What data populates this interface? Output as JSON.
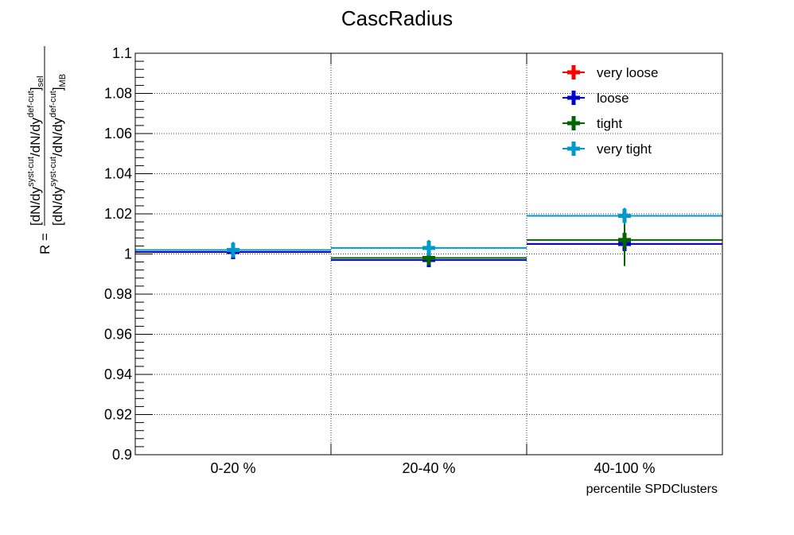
{
  "chart_data": {
    "type": "scatter",
    "title": "CascRadius",
    "xlabel": "percentile SPDClusters",
    "ylabel": {
      "lhs": "R =",
      "numerator": {
        "open": "[dN/dy",
        "sup1": "syst-cut",
        "mid": "/dN/dy",
        "sup2": "def-cut",
        "close": "]",
        "sub": "sel"
      },
      "denominator": {
        "open": "[dN/dy",
        "sup1": "syst-cut",
        "mid": "/dN/dy",
        "sup2": "def-cut",
        "close": "]",
        "sub": "MB"
      }
    },
    "categories": [
      "0-20 %",
      "20-40 %",
      "40-100 %"
    ],
    "ylim": [
      0.9,
      1.1
    ],
    "y_ticks": [
      "0.9",
      "0.92",
      "0.94",
      "0.96",
      "0.98",
      "1",
      "1.02",
      "1.04",
      "1.06",
      "1.08",
      "1.1"
    ],
    "grid": true,
    "legend_position": "top-right",
    "series": [
      {
        "name": "very loose",
        "color": "#ff0000",
        "values": [
          1.001,
          0.998,
          1.005
        ],
        "errors": [
          0.002,
          0.002,
          0.008
        ]
      },
      {
        "name": "loose",
        "color": "#0000cc",
        "values": [
          1.001,
          0.997,
          1.005
        ],
        "errors": [
          0.002,
          0.003,
          0.006
        ]
      },
      {
        "name": "tight",
        "color": "#006600",
        "values": [
          1.002,
          0.998,
          1.007
        ],
        "errors": [
          0.002,
          0.002,
          0.013
        ]
      },
      {
        "name": "very tight",
        "color": "#0099cc",
        "values": [
          1.002,
          1.003,
          1.019
        ],
        "errors": [
          0.004,
          0.004,
          0.004
        ]
      }
    ]
  }
}
